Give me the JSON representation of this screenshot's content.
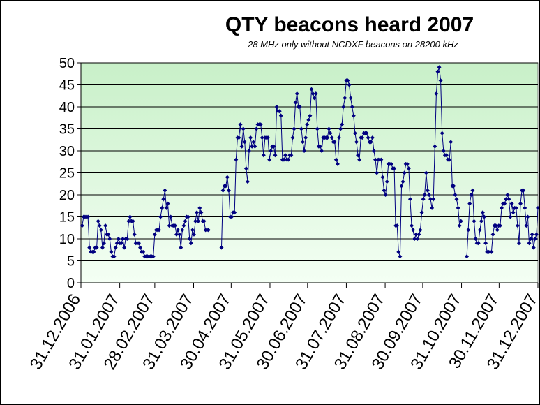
{
  "chart_data": {
    "type": "line",
    "title": "QTY beacons heard 2007",
    "subtitle": "28 MHz only without NCDXF beacons on 28200 kHz",
    "xlabel": "",
    "ylabel": "",
    "ylim": [
      0,
      50
    ],
    "yticks": [
      "0",
      "5",
      "10",
      "15",
      "20",
      "25",
      "30",
      "35",
      "40",
      "45",
      "50"
    ],
    "xticks": [
      "31.12.2006",
      "31.01.2007",
      "28.02.2007",
      "31.03.2007",
      "30.04.2007",
      "31.05.2007",
      "30.06.2007",
      "31.07.2007",
      "31.08.2007",
      "30.09.2007",
      "31.10.2007",
      "30.11.2007",
      "31.12.2007"
    ],
    "x_start_date": "31.12.2006",
    "grid": true,
    "legend": "none",
    "colors": {
      "series": "#000080",
      "plot_bg_top": "#c8f0c8",
      "plot_bg_bottom": "#f4fff4",
      "grid": "#000000"
    },
    "series": [
      {
        "values": [
          13,
          15,
          15,
          15,
          15,
          8,
          7,
          7,
          7,
          8,
          8,
          14,
          13,
          12,
          8,
          9,
          13,
          11,
          11,
          10,
          7,
          6,
          6,
          8,
          9,
          10,
          9,
          9,
          10,
          8,
          10,
          10,
          14,
          15,
          14,
          14,
          11,
          9,
          9,
          9,
          8,
          7,
          7,
          6,
          6,
          6,
          6,
          6,
          6,
          6,
          11,
          12,
          12,
          12,
          15,
          17,
          19,
          21,
          17,
          18,
          13,
          15,
          13,
          13,
          13,
          11,
          12,
          11,
          8,
          12,
          13,
          14,
          15,
          15,
          10,
          9,
          12,
          11,
          14,
          16,
          14,
          17,
          16,
          14,
          14,
          12,
          12,
          12,
          null,
          null,
          null,
          null,
          null,
          null,
          null,
          null,
          8,
          21,
          22,
          22,
          24,
          21,
          15,
          15,
          16,
          16,
          28,
          33,
          33,
          36,
          31,
          35,
          32,
          26,
          23,
          30,
          33,
          31,
          32,
          31,
          35,
          36,
          36,
          36,
          33,
          29,
          33,
          33,
          33,
          28,
          30,
          31,
          31,
          29,
          40,
          39,
          39,
          38,
          28,
          28,
          29,
          28,
          28,
          29,
          29,
          33,
          35,
          41,
          43,
          40,
          40,
          35,
          32,
          30,
          33,
          36,
          37,
          38,
          44,
          43,
          42,
          43,
          35,
          31,
          31,
          30,
          33,
          33,
          33,
          33,
          35,
          34,
          33,
          32,
          32,
          28,
          27,
          33,
          35,
          36,
          40,
          42,
          46,
          46,
          45,
          42,
          40,
          38,
          34,
          32,
          29,
          28,
          33,
          33,
          34,
          34,
          34,
          33,
          32,
          32,
          33,
          30,
          28,
          25,
          28,
          28,
          28,
          24,
          21,
          20,
          23,
          27,
          27,
          27,
          26,
          26,
          13,
          13,
          7,
          6,
          22,
          23,
          25,
          27,
          27,
          26,
          19,
          13,
          12,
          10,
          11,
          10,
          11,
          12,
          16,
          19,
          20,
          25,
          21,
          20,
          19,
          17,
          19,
          31,
          43,
          48,
          49,
          46,
          34,
          30,
          29,
          29,
          28,
          28,
          32,
          22,
          22,
          20,
          19,
          17,
          13,
          14,
          null,
          null,
          null,
          6,
          12,
          18,
          20,
          21,
          14,
          10,
          9,
          9,
          12,
          14,
          16,
          15,
          9,
          7,
          7,
          7,
          7,
          11,
          13,
          13,
          12,
          13,
          13,
          17,
          18,
          18,
          19,
          20,
          19,
          15,
          18,
          16,
          17,
          17,
          13,
          9,
          18,
          21,
          21,
          17,
          13,
          15,
          9,
          10,
          11,
          8,
          10,
          11,
          17
        ]
      }
    ]
  }
}
